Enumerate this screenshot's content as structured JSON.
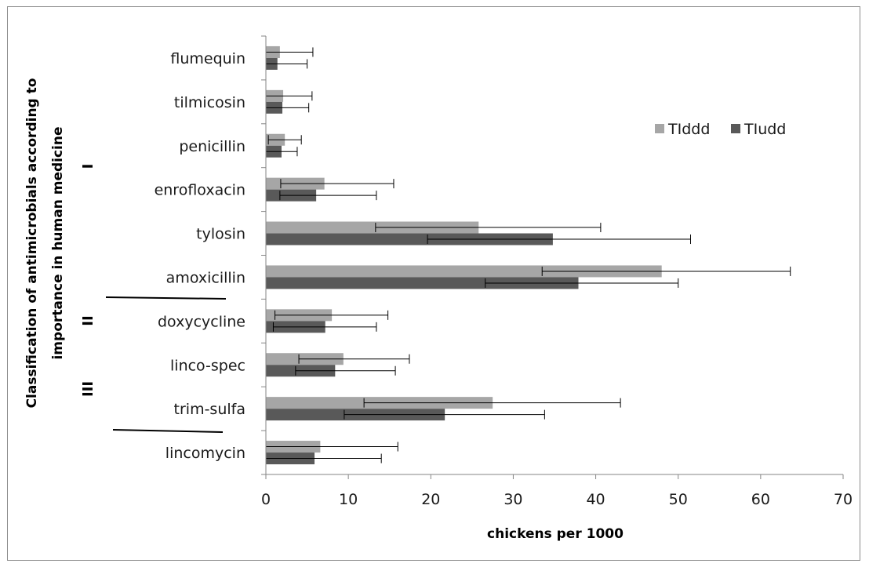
{
  "chart_data": {
    "type": "bar",
    "orientation": "horizontal",
    "categories": [
      "flumequin",
      "tilmicosin",
      "penicillin",
      "enrofloxacin",
      "tylosin",
      "amoxicillin",
      "doxycycline",
      "linco-spec",
      "trim-sulfa",
      "lincomycin"
    ],
    "series": [
      {
        "name": "TIddd",
        "color": "#a6a6a6",
        "values": [
          1.7,
          2.1,
          2.3,
          7.1,
          25.8,
          48.0,
          8.0,
          9.4,
          27.5,
          6.6
        ],
        "error_low": [
          0.0,
          0.0,
          0.3,
          1.8,
          13.3,
          33.5,
          1.1,
          4.0,
          11.9,
          0.0
        ],
        "error_high": [
          5.7,
          5.6,
          4.3,
          15.5,
          40.6,
          63.6,
          14.8,
          17.4,
          43.0,
          16.0
        ]
      },
      {
        "name": "TIudd",
        "color": "#595959",
        "values": [
          1.4,
          2.0,
          1.9,
          6.1,
          34.8,
          37.9,
          7.2,
          8.4,
          21.7,
          5.9
        ],
        "error_low": [
          0.0,
          0.0,
          0.0,
          1.7,
          19.6,
          26.6,
          0.9,
          3.6,
          9.5,
          0.0
        ],
        "error_high": [
          5.0,
          5.2,
          3.8,
          13.4,
          51.5,
          50.0,
          13.4,
          15.7,
          33.8,
          14.0
        ]
      }
    ],
    "title": "",
    "xlabel": "chickens per 1000",
    "ylabel": "Classification of antimicrobials according to importance in human medicine",
    "ylabel_lines": [
      "Classification of antimicrobials according to",
      "importance in human medicine"
    ],
    "xlim": [
      0,
      70
    ],
    "xticks": [
      0,
      10,
      20,
      30,
      40,
      50,
      60,
      70
    ],
    "grid": false,
    "legend": "right",
    "groups": [
      {
        "label": "I",
        "from": "flumequin",
        "to": "amoxicillin"
      },
      {
        "label": "II",
        "from": "doxycycline",
        "to": "doxycycline"
      },
      {
        "label": "III",
        "from": "linco-spec",
        "to": "trim-sulfa"
      }
    ]
  }
}
